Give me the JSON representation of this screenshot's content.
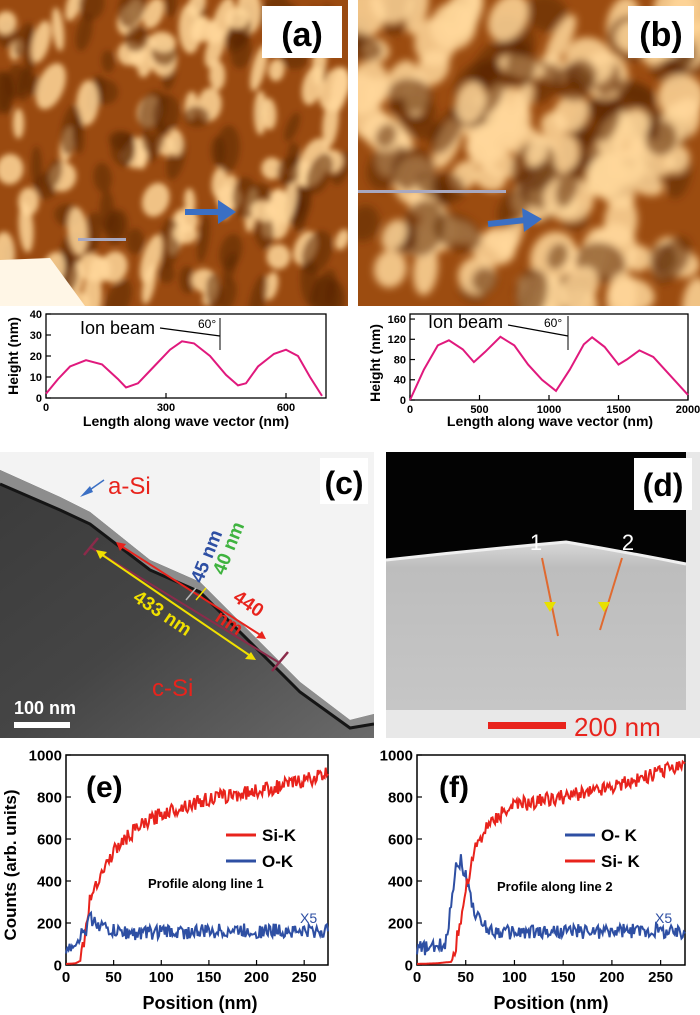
{
  "panels": {
    "a": {
      "label": "(a)",
      "arrow_label": "",
      "profile": {
        "annotation": "Ion beam",
        "angle": "60°",
        "ylabel": "Height (nm)",
        "xlabel": "Length along wave vector (nm)"
      }
    },
    "b": {
      "label": "(b)",
      "profile": {
        "annotation": "Ion beam",
        "angle": "60°",
        "ylabel": "Height (nm)",
        "xlabel": "Length along wave vector (nm)"
      }
    },
    "c": {
      "label": "(c)",
      "amorphous_label": "a-Si",
      "crystal_label": "c-Si",
      "dim_433": "433 nm",
      "dim_440": "440",
      "dim_440_unit": "nm",
      "dim_45": "45 nm",
      "dim_40": "40 nm",
      "scalebar": "100 nm"
    },
    "d": {
      "label": "(d)",
      "line1": "1",
      "line2": "2",
      "scalebar": "200 nm"
    },
    "e": {
      "label": "(e)",
      "legend": [
        "Si-K",
        "O-K"
      ],
      "note": "Profile along line 1",
      "scale_note": "X5",
      "ylabel": "Counts (arb. units)",
      "xlabel": "Position (nm)"
    },
    "f": {
      "label": "(f)",
      "legend": [
        "O- K",
        "Si- K"
      ],
      "note": "Profile along line 2",
      "scale_note": "X5",
      "xlabel": "Position (nm)"
    }
  },
  "colors": {
    "pink": "#e0197d",
    "si_red": "#e8231c",
    "o_blue": "#2e4fa3",
    "afm_dark": "#5a2400",
    "afm_light": "#ffd79a"
  },
  "chart_data": [
    {
      "type": "line",
      "panel": "a",
      "xlabel": "Length along wave vector (nm)",
      "ylabel": "Height (nm)",
      "xlim": [
        0,
        700
      ],
      "ylim": [
        0,
        40
      ],
      "xticks": [
        0,
        300,
        600
      ],
      "yticks": [
        0,
        10,
        20,
        30,
        40
      ],
      "series": [
        {
          "x": [
            0,
            30,
            60,
            100,
            140,
            180,
            200,
            230,
            270,
            310,
            340,
            370,
            410,
            450,
            480,
            500,
            530,
            570,
            600,
            630,
            660,
            690
          ],
          "values": [
            2,
            9,
            15,
            18,
            16,
            9,
            5,
            7,
            15,
            23,
            27,
            26,
            20,
            11,
            6,
            7,
            15,
            21,
            23,
            20,
            10,
            1
          ]
        }
      ]
    },
    {
      "type": "line",
      "panel": "b",
      "xlabel": "Length along wave vector (nm)",
      "ylabel": "Height (nm)",
      "xlim": [
        0,
        2000
      ],
      "ylim": [
        0,
        170
      ],
      "xticks": [
        0,
        500,
        1000,
        1500,
        2000
      ],
      "yticks": [
        0,
        40,
        80,
        120,
        160
      ],
      "series": [
        {
          "x": [
            0,
            100,
            200,
            280,
            380,
            460,
            540,
            650,
            750,
            850,
            950,
            1050,
            1150,
            1250,
            1310,
            1400,
            1500,
            1560,
            1650,
            1750,
            1850,
            1950,
            2000
          ],
          "values": [
            0,
            60,
            108,
            118,
            100,
            75,
            95,
            125,
            108,
            70,
            40,
            18,
            60,
            110,
            124,
            105,
            70,
            80,
            98,
            85,
            55,
            25,
            10
          ]
        }
      ]
    },
    {
      "type": "line",
      "panel": "e",
      "xlabel": "Position (nm)",
      "ylabel": "Counts (arb. units)",
      "xlim": [
        0,
        275
      ],
      "ylim": [
        0,
        1000
      ],
      "xticks": [
        0,
        50,
        100,
        150,
        200,
        250
      ],
      "yticks": [
        0,
        200,
        400,
        600,
        800,
        1000
      ],
      "series": [
        {
          "name": "Si-K",
          "x": [
            0,
            10,
            15,
            20,
            25,
            30,
            35,
            40,
            50,
            60,
            75,
            100,
            125,
            150,
            175,
            200,
            225,
            250,
            275
          ],
          "values": [
            5,
            8,
            20,
            150,
            300,
            380,
            420,
            460,
            540,
            590,
            650,
            720,
            760,
            790,
            810,
            830,
            850,
            880,
            910
          ]
        },
        {
          "name": "O-K",
          "x": [
            0,
            10,
            20,
            25,
            30,
            40,
            50,
            75,
            100,
            125,
            150,
            175,
            200,
            225,
            250,
            275
          ],
          "values": [
            80,
            110,
            160,
            220,
            210,
            175,
            160,
            150,
            160,
            155,
            160,
            165,
            160,
            165,
            160,
            160
          ]
        }
      ]
    },
    {
      "type": "line",
      "panel": "f",
      "xlabel": "Position (nm)",
      "xlim": [
        0,
        275
      ],
      "ylim": [
        0,
        1000
      ],
      "xticks": [
        0,
        50,
        100,
        150,
        200,
        250
      ],
      "yticks": [
        0,
        200,
        400,
        600,
        800,
        1000
      ],
      "series": [
        {
          "name": "O- K",
          "x": [
            0,
            20,
            30,
            35,
            40,
            45,
            50,
            55,
            60,
            70,
            80,
            100,
            150,
            200,
            250,
            275
          ],
          "values": [
            80,
            80,
            110,
            300,
            480,
            500,
            420,
            330,
            240,
            180,
            160,
            155,
            160,
            160,
            165,
            150
          ]
        },
        {
          "name": "Si- K",
          "x": [
            0,
            20,
            35,
            40,
            45,
            50,
            55,
            60,
            70,
            80,
            100,
            125,
            150,
            175,
            200,
            225,
            250,
            275
          ],
          "values": [
            5,
            8,
            15,
            100,
            220,
            360,
            460,
            560,
            640,
            700,
            760,
            780,
            800,
            820,
            850,
            880,
            920,
            960
          ]
        }
      ]
    }
  ]
}
